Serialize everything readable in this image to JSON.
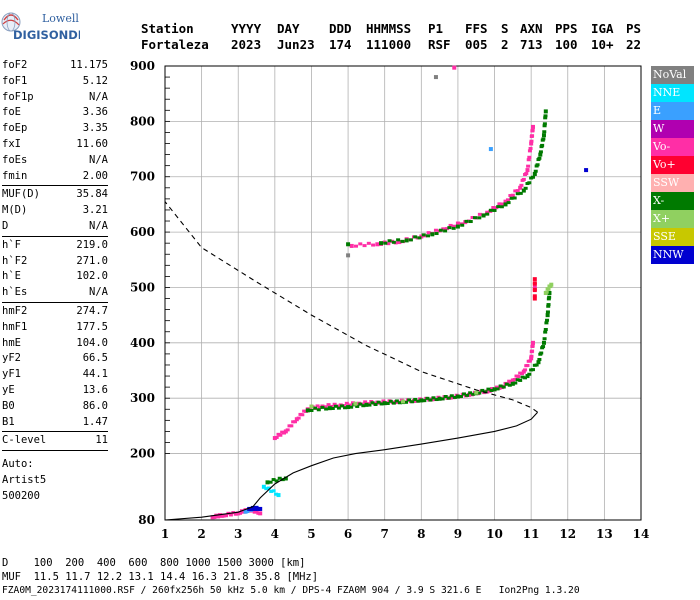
{
  "logo": {
    "line1": "Lowell",
    "line2": "DIGISONDE"
  },
  "header": {
    "labels": [
      "Station",
      "YYYY",
      "DAY",
      "DDD",
      "HHMMSS",
      "P1",
      "FFS",
      "S",
      "AXN",
      "PPS",
      "IGA",
      "PS"
    ],
    "values": [
      "Fortaleza",
      "2023",
      "Jun23",
      "174",
      "111000",
      "RSF",
      "005",
      "2",
      "713",
      "100",
      "10+",
      "22"
    ]
  },
  "params": {
    "group1": [
      [
        "foF2",
        "11.175"
      ],
      [
        "foF1",
        "5.12"
      ],
      [
        "foF1p",
        "N/A"
      ],
      [
        "foE",
        "3.36"
      ],
      [
        "foEp",
        "3.35"
      ],
      [
        "fxI",
        "11.60"
      ],
      [
        "foEs",
        "N/A"
      ],
      [
        "fmin",
        "2.00"
      ]
    ],
    "group2": [
      [
        "MUF(D)",
        "35.84"
      ],
      [
        "M(D)",
        "3.21"
      ],
      [
        "D",
        "N/A"
      ]
    ],
    "group3": [
      [
        "h`F",
        "219.0"
      ],
      [
        "h`F2",
        "271.0"
      ],
      [
        "h`E",
        "102.0"
      ],
      [
        "h`Es",
        "N/A"
      ]
    ],
    "group4": [
      [
        "hmF2",
        "274.7"
      ],
      [
        "hmF1",
        "177.5"
      ],
      [
        "hmE",
        "104.0"
      ],
      [
        "yF2",
        "66.5"
      ],
      [
        "yF1",
        "44.1"
      ],
      [
        "yE",
        "13.6"
      ],
      [
        "B0",
        "86.0"
      ],
      [
        "B1",
        "1.47"
      ]
    ],
    "group5": [
      [
        "C-level",
        "11"
      ]
    ],
    "auto": [
      "Auto:",
      "Artist5",
      "500200"
    ]
  },
  "legend": [
    {
      "label": "NoVal",
      "color": "#808080"
    },
    {
      "label": "NNE",
      "color": "#00e5ff"
    },
    {
      "label": "E",
      "color": "#3aa0ff"
    },
    {
      "label": "W",
      "color": "#b000b0"
    },
    {
      "label": "Vo-",
      "color": "#ff2ea6"
    },
    {
      "label": "Vo+",
      "color": "#ff0030"
    },
    {
      "label": "SSW",
      "color": "#ffb0b0"
    },
    {
      "label": "X-",
      "color": "#007a00"
    },
    {
      "label": "X+",
      "color": "#90d060"
    },
    {
      "label": "SSE",
      "color": "#c8c800"
    },
    {
      "label": "NNW",
      "color": "#0000d0"
    }
  ],
  "footer": {
    "line1": "D    100  200  400  600  800 1000 1500 3000 [km]",
    "line2": "MUF  11.5 11.7 12.2 13.1 14.4 16.3 21.8 35.8 [MHz]",
    "line3": "FZA0M_2023174111000.RSF / 260fx256h 50 kHz 5.0 km / DPS-4 FZA0M 904 / 3.9 S 321.6 E   Ion2Png 1.3.20"
  },
  "chart_data": {
    "type": "scatter",
    "xlim": [
      1,
      14
    ],
    "ylim": [
      80,
      900
    ],
    "xticks": [
      1,
      2,
      3,
      4,
      5,
      6,
      7,
      8,
      9,
      10,
      11,
      12,
      13,
      14
    ],
    "yticks": [
      80,
      200,
      300,
      400,
      500,
      600,
      700,
      800,
      900
    ],
    "grid": true,
    "xlabel": "",
    "ylabel": "",
    "echo_traces": [
      {
        "series": "Vo-",
        "color": "#ff2ea6",
        "points": [
          [
            2.3,
            85
          ],
          [
            2.6,
            88
          ],
          [
            3.0,
            92
          ],
          [
            3.3,
            98
          ],
          [
            3.6,
            92
          ],
          [
            4.0,
            228
          ],
          [
            4.3,
            240
          ],
          [
            4.6,
            262
          ],
          [
            4.9,
            280
          ],
          [
            5.3,
            285
          ],
          [
            5.8,
            287
          ],
          [
            6.3,
            290
          ],
          [
            6.8,
            292
          ],
          [
            7.3,
            293
          ],
          [
            7.8,
            295
          ],
          [
            8.3,
            298
          ],
          [
            8.8,
            301
          ],
          [
            9.3,
            306
          ],
          [
            9.8,
            312
          ],
          [
            10.2,
            320
          ],
          [
            10.5,
            332
          ],
          [
            10.8,
            348
          ],
          [
            11.0,
            372
          ],
          [
            11.05,
            400
          ],
          [
            11.1,
            500
          ],
          [
            6.1,
            575
          ],
          [
            6.8,
            578
          ],
          [
            7.4,
            582
          ],
          [
            8.0,
            592
          ],
          [
            8.6,
            605
          ],
          [
            9.2,
            618
          ],
          [
            9.8,
            635
          ],
          [
            10.3,
            655
          ],
          [
            10.7,
            680
          ],
          [
            10.9,
            712
          ],
          [
            11.0,
            760
          ],
          [
            11.05,
            790
          ],
          [
            8.9,
            897
          ]
        ]
      },
      {
        "series": "X-",
        "color": "#007a00",
        "points": [
          [
            3.8,
            148
          ],
          [
            4.3,
            155
          ],
          [
            4.9,
            278
          ],
          [
            5.5,
            282
          ],
          [
            6.0,
            284
          ],
          [
            6.5,
            288
          ],
          [
            7.0,
            291
          ],
          [
            7.5,
            293
          ],
          [
            8.0,
            296
          ],
          [
            8.5,
            299
          ],
          [
            9.0,
            303
          ],
          [
            9.5,
            309
          ],
          [
            10.0,
            316
          ],
          [
            10.5,
            326
          ],
          [
            10.9,
            340
          ],
          [
            11.2,
            365
          ],
          [
            11.35,
            400
          ],
          [
            11.45,
            450
          ],
          [
            11.5,
            490
          ],
          [
            6.0,
            578
          ],
          [
            6.9,
            580
          ],
          [
            7.6,
            585
          ],
          [
            8.3,
            596
          ],
          [
            9.0,
            610
          ],
          [
            9.7,
            630
          ],
          [
            10.3,
            650
          ],
          [
            10.8,
            675
          ],
          [
            11.1,
            705
          ],
          [
            11.25,
            740
          ],
          [
            11.35,
            775
          ],
          [
            11.4,
            818
          ]
        ]
      },
      {
        "series": "Vo+",
        "color": "#ff0030",
        "points": [
          [
            11.1,
            480
          ],
          [
            11.1,
            515
          ]
        ]
      },
      {
        "series": "X+",
        "color": "#90d060",
        "points": [
          [
            5.0,
            285
          ],
          [
            6.2,
            290
          ],
          [
            7.5,
            294
          ],
          [
            9.5,
            310
          ],
          [
            11.4,
            490
          ],
          [
            11.55,
            505
          ]
        ]
      },
      {
        "series": "NNE",
        "color": "#00e5ff",
        "points": [
          [
            3.7,
            140
          ],
          [
            4.1,
            125
          ]
        ]
      },
      {
        "series": "E",
        "color": "#3aa0ff",
        "points": [
          [
            3.2,
            95
          ],
          [
            3.5,
            102
          ],
          [
            9.9,
            750
          ]
        ]
      },
      {
        "series": "NNW",
        "color": "#0000d0",
        "points": [
          [
            3.3,
            100
          ],
          [
            3.6,
            100
          ],
          [
            12.5,
            712
          ]
        ]
      },
      {
        "series": "NoVal",
        "color": "#808080",
        "points": [
          [
            8.4,
            880
          ],
          [
            6.0,
            558
          ]
        ]
      }
    ],
    "profile": [
      [
        1.0,
        80
      ],
      [
        2.0,
        85
      ],
      [
        3.0,
        94
      ],
      [
        3.4,
        104
      ],
      [
        3.6,
        120
      ],
      [
        4.0,
        145
      ],
      [
        4.5,
        165
      ],
      [
        5.0,
        178
      ],
      [
        5.6,
        192
      ],
      [
        6.2,
        200
      ],
      [
        7.0,
        207
      ],
      [
        8.0,
        217
      ],
      [
        9.0,
        228
      ],
      [
        10.0,
        240
      ],
      [
        10.6,
        250
      ],
      [
        11.0,
        262
      ],
      [
        11.175,
        274.7
      ]
    ],
    "extrapolation": [
      [
        11.175,
        274.7
      ],
      [
        11.0,
        283
      ],
      [
        10.5,
        297
      ],
      [
        9.5,
        315
      ],
      [
        8.0,
        348
      ],
      [
        6.5,
        395
      ],
      [
        5.0,
        450
      ],
      [
        3.5,
        510
      ],
      [
        2.0,
        572
      ],
      [
        1.0,
        655
      ]
    ]
  }
}
